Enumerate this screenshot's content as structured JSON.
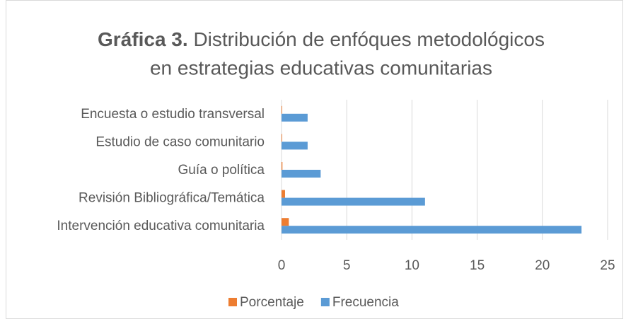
{
  "chart_data": {
    "type": "hbar",
    "title_label": "Gráfica 3.",
    "title_lines": [
      "Distribución de enfóques metodológicos",
      "en estrategias educativas comunitarias"
    ],
    "categories": [
      "Encuesta o estudio transversal",
      "Estudio de caso comunitario",
      "Guía o política",
      "Revisión Bibliográfica/Temática",
      "Intervención educativa comunitaria"
    ],
    "series": [
      {
        "name": "Porcentaje",
        "color": "#ed7d31",
        "values": [
          0.05,
          0.05,
          0.07,
          0.27,
          0.56
        ]
      },
      {
        "name": "Frecuencia",
        "color": "#5b9bd5",
        "values": [
          2,
          2,
          3,
          11,
          23
        ]
      }
    ],
    "xlim": [
      0,
      25
    ],
    "xticks": [
      0,
      5,
      10,
      15,
      20,
      25
    ],
    "grid": true,
    "legend": "bottom"
  }
}
